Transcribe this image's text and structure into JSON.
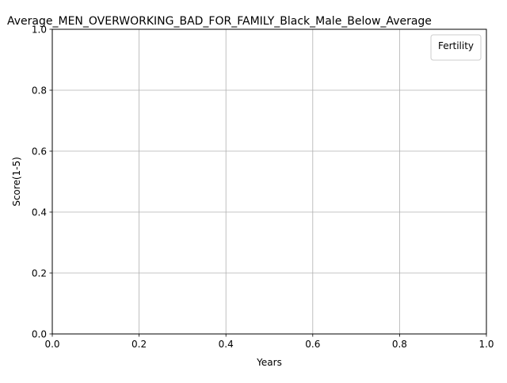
{
  "chart_data": {
    "type": "line",
    "title": "Average_MEN_OVERWORKING_BAD_FOR_FAMILY_Black_Male_Below_Average",
    "xlabel": "Years",
    "ylabel": "Score(1-5)",
    "xlim": [
      0.0,
      1.0
    ],
    "ylim": [
      0.0,
      1.0
    ],
    "x_ticks": [
      "0.0",
      "0.2",
      "0.4",
      "0.6",
      "0.8",
      "1.0"
    ],
    "y_ticks": [
      "0.0",
      "0.2",
      "0.4",
      "0.6",
      "0.8",
      "1.0"
    ],
    "grid": true,
    "legend": {
      "title": "Fertility",
      "placement": "top-right",
      "entries": []
    },
    "series": []
  }
}
